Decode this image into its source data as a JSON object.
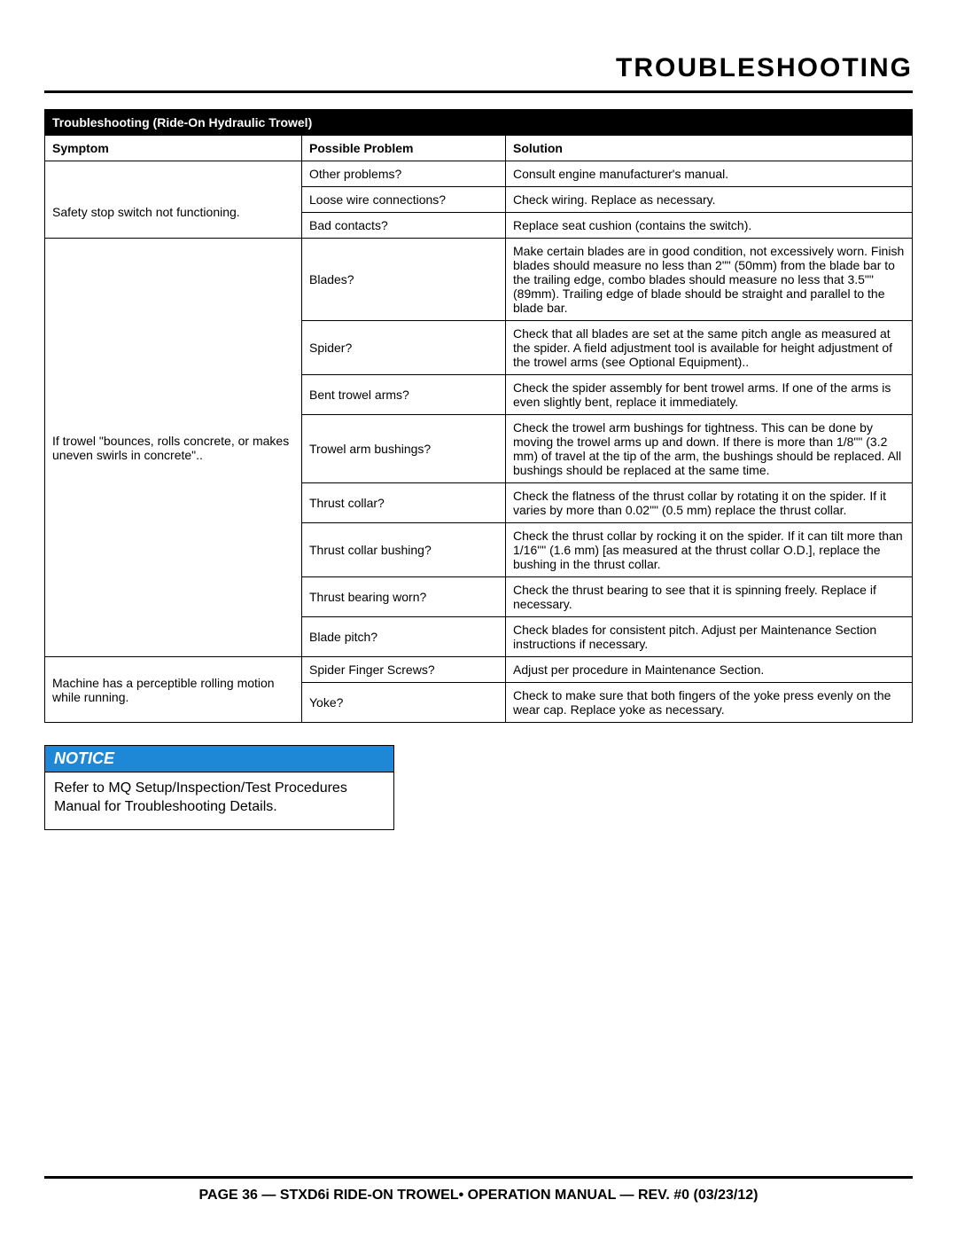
{
  "page_title": "TROUBLESHOOTING",
  "table": {
    "title": "Troubleshooting (Ride-On Hydraulic Trowel)",
    "headers": {
      "c1": "Symptom",
      "c2": "Possible Problem",
      "c3": "Solution"
    },
    "groups": [
      {
        "symptom_rowspan": 1,
        "symptom": "",
        "rows": [
          {
            "problem": "Other problems?",
            "solution": "Consult engine manufacturer's manual."
          }
        ]
      },
      {
        "symptom_rowspan": 2,
        "symptom": "Safety stop switch not functioning.",
        "rows": [
          {
            "problem": "Loose wire connections?",
            "solution": "Check wiring. Replace as necessary."
          },
          {
            "problem": "Bad contacts?",
            "solution": "Replace seat cushion (contains the switch)."
          }
        ]
      },
      {
        "symptom_rowspan": 8,
        "symptom": "If trowel \"bounces, rolls concrete, or makes uneven swirls in concrete\"..",
        "rows": [
          {
            "problem": "Blades?",
            "solution": "Make certain blades are in good condition, not excessively worn. Finish blades should measure no less than 2\"\" (50mm) from the blade bar to the trailing edge, combo blades should measure no less that 3.5\"\" (89mm). Trailing edge of blade should be straight and parallel to the blade bar."
          },
          {
            "problem": "Spider?",
            "solution": "Check that all blades are set at the same pitch angle as measured at the spider. A field adjustment tool is available for height adjustment of the trowel arms (see Optional Equipment).."
          },
          {
            "problem": "Bent trowel arms?",
            "solution": "Check the spider assembly for bent trowel arms. If one of the arms is even slightly bent, replace it immediately."
          },
          {
            "problem": "Trowel arm bushings?",
            "solution": "Check the trowel arm bushings for tightness. This can be done by moving the trowel arms up and down. If there is more than 1/8\"\" (3.2 mm) of travel at the tip of the arm, the bushings should be replaced. All bushings should be replaced at the same time."
          },
          {
            "problem": "Thrust collar?",
            "solution": "Check the flatness of the thrust collar by rotating it on the spider. If it varies by more than 0.02\"\" (0.5 mm) replace the thrust collar."
          },
          {
            "problem": "Thrust collar bushing?",
            "solution": "Check the thrust collar by rocking it on the spider. If it can tilt more than 1/16\"\" (1.6 mm) [as measured at the thrust collar O.D.], replace the bushing in the thrust collar."
          },
          {
            "problem": "Thrust bearing worn?",
            "solution": "Check the thrust bearing to see that it is spinning freely. Replace if necessary."
          },
          {
            "problem": "Blade pitch?",
            "solution": "Check blades for consistent pitch. Adjust per Maintenance Section instructions if necessary."
          }
        ]
      },
      {
        "symptom_rowspan": 2,
        "symptom": "Machine has a perceptible rolling motion while running.",
        "rows": [
          {
            "problem": "Spider Finger Screws?",
            "solution": "Adjust per procedure in Maintenance Section."
          },
          {
            "problem": "Yoke?",
            "solution": "Check to make sure that both fingers of the yoke press evenly on the wear cap. Replace yoke as necessary."
          }
        ]
      }
    ]
  },
  "notice": {
    "label": "NOTICE",
    "text": "Refer to MQ Setup/Inspection/Test Procedures Manual for Troubleshooting Details.",
    "header_bg": "#1e88d6",
    "header_fg": "#ffffff"
  },
  "footer": "PAGE 36 — STXD6i RIDE-ON TROWEL• OPERATION MANUAL — REV. #0 (03/23/12)"
}
